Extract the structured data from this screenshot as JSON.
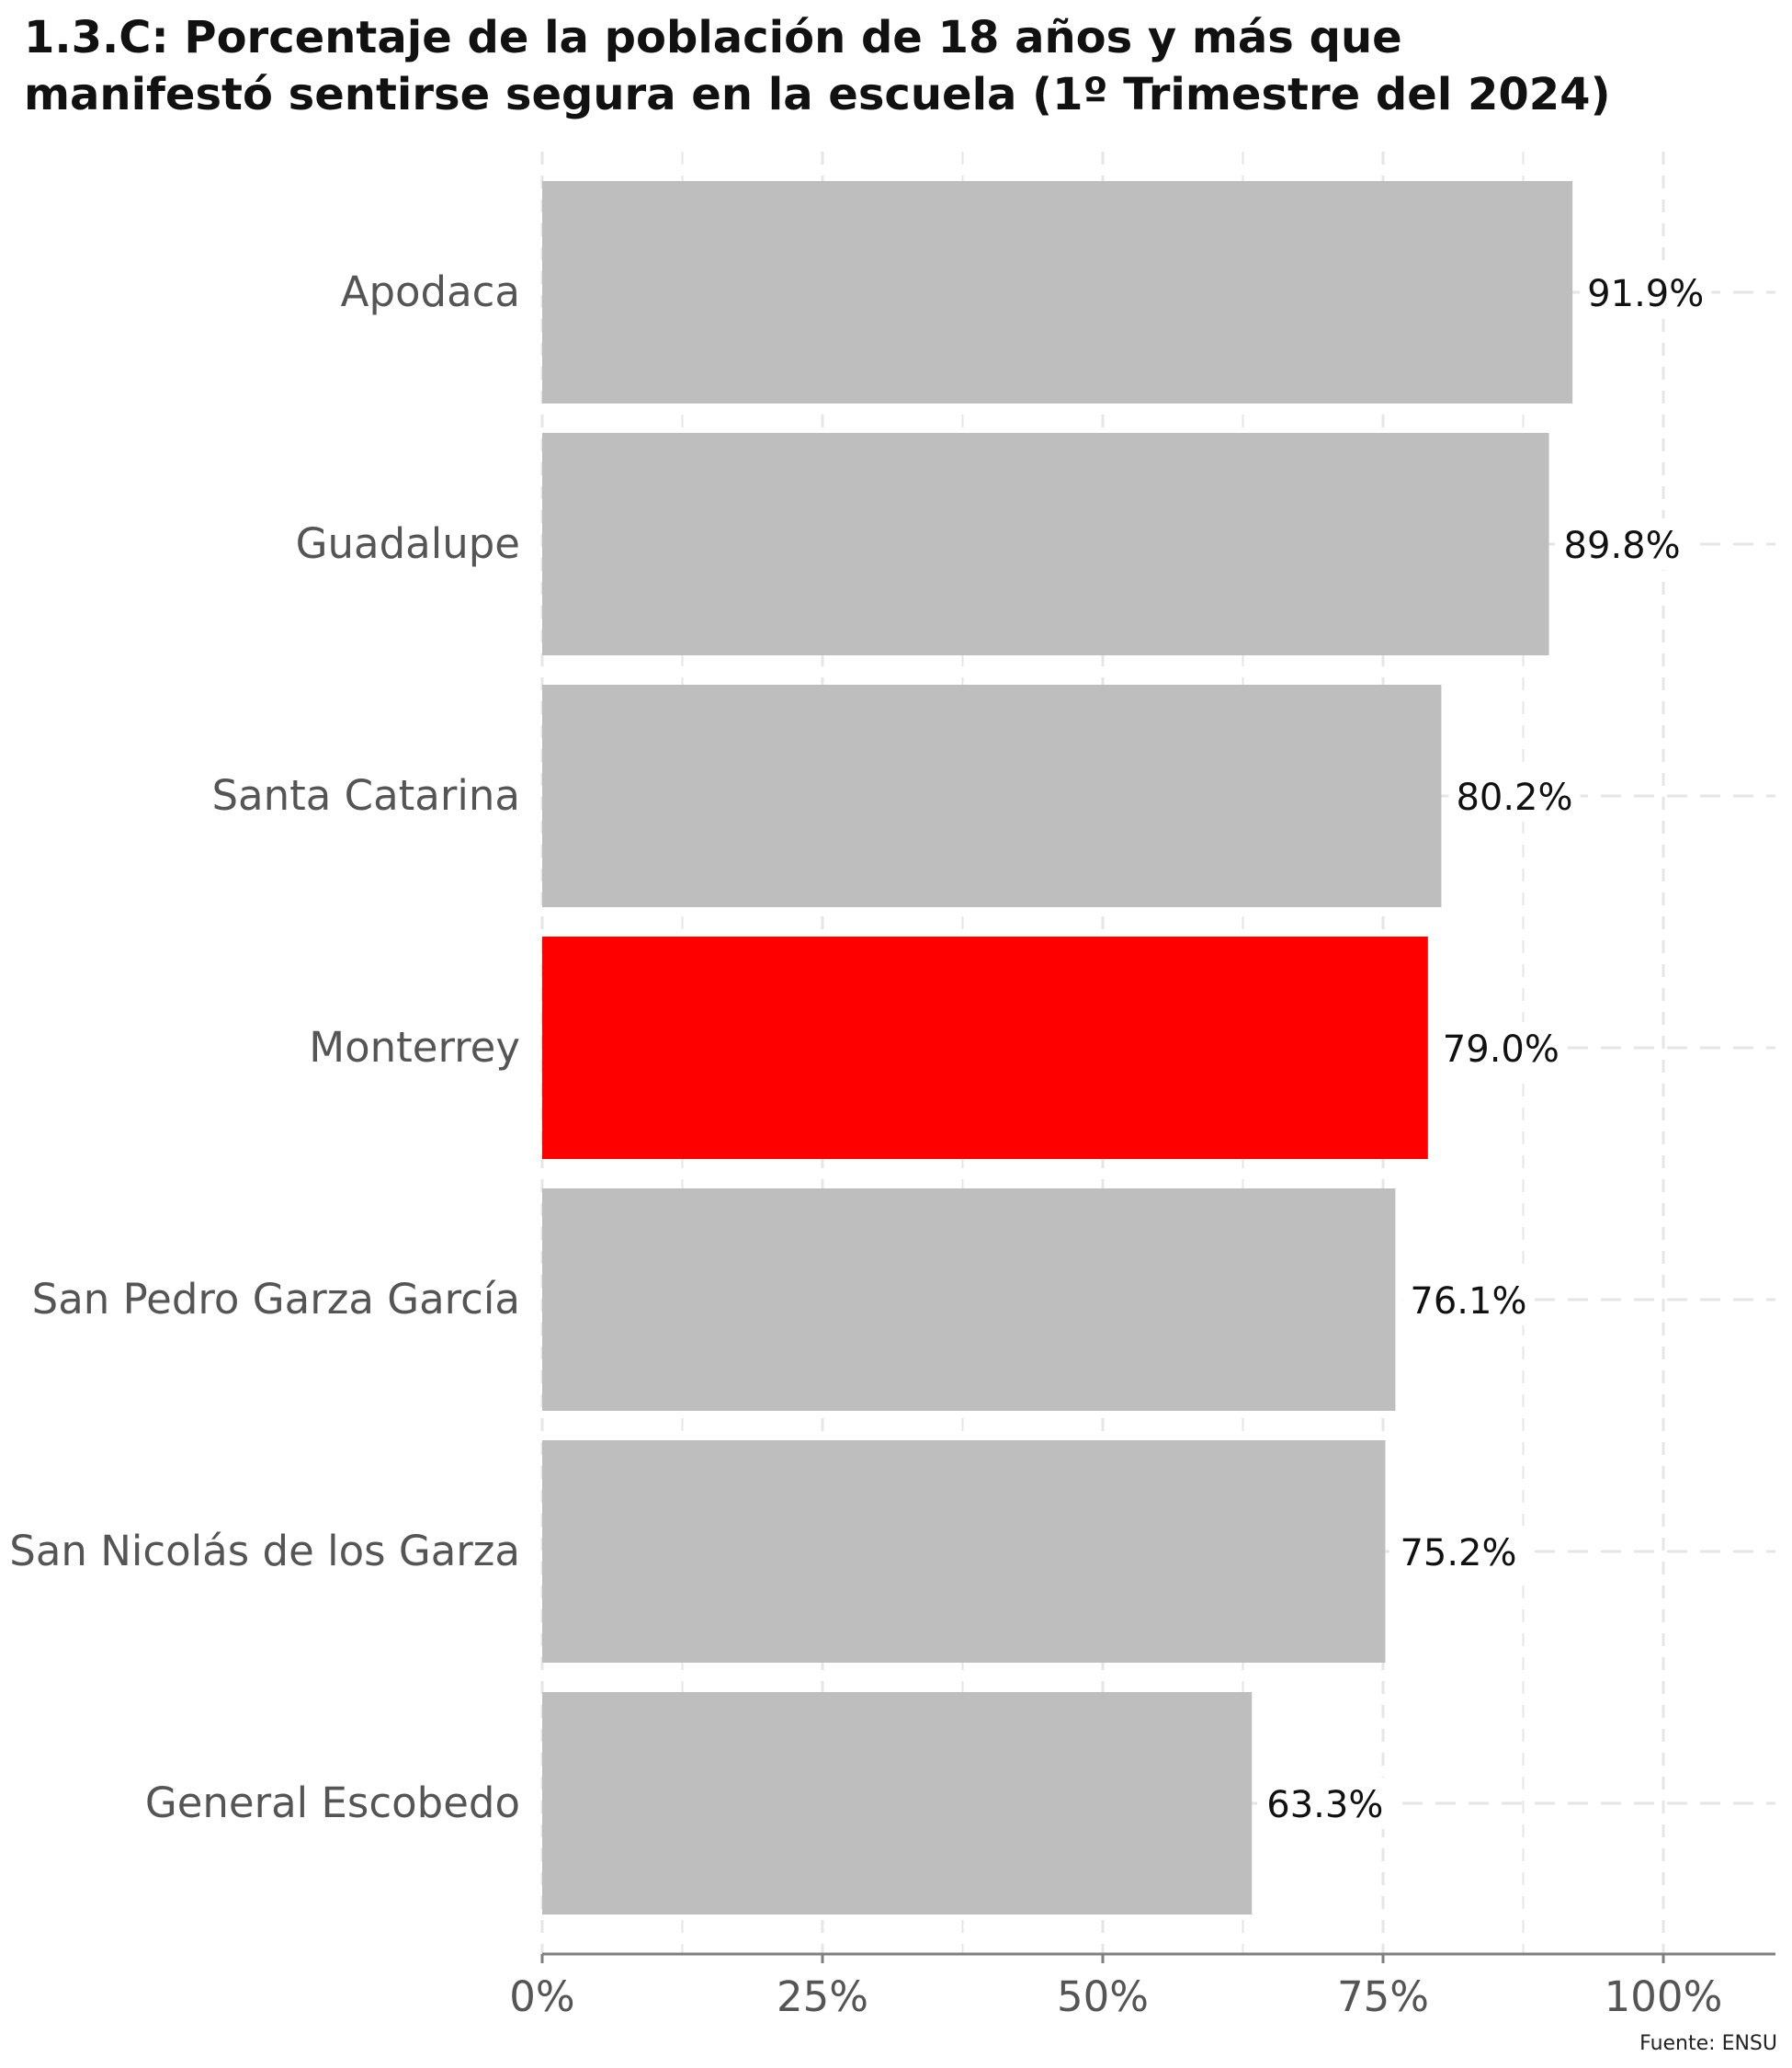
{
  "chart_data": {
    "type": "bar",
    "orientation": "horizontal",
    "title_lines": [
      "1.3.C: Porcentaje de la población de 18 años y más que",
      "manifestó sentirse segura en la escuela (1º Trimestre del 2024)"
    ],
    "categories": [
      "Apodaca",
      "Guadalupe",
      "Santa Catarina",
      "Monterrey",
      "San Pedro Garza García",
      "San Nicolás de los Garza",
      "General Escobedo"
    ],
    "values": [
      91.9,
      89.8,
      80.2,
      79.0,
      76.1,
      75.2,
      63.3
    ],
    "value_labels": [
      "91.9%",
      "89.8%",
      "80.2%",
      "79.0%",
      "76.1%",
      "75.2%",
      "63.3%"
    ],
    "highlight": "Monterrey",
    "colors": {
      "bar": "#bebebe",
      "highlight": "#ff0000",
      "grid": "#e6e6e6",
      "axis": "#7f7f7f"
    },
    "xlim": [
      0,
      110
    ],
    "x_ticks": [
      0,
      25,
      50,
      75,
      100
    ],
    "x_tick_labels": [
      "0%",
      "25%",
      "50%",
      "75%",
      "100%"
    ],
    "grid": "dashed",
    "source": "Fuente: ENSU"
  }
}
